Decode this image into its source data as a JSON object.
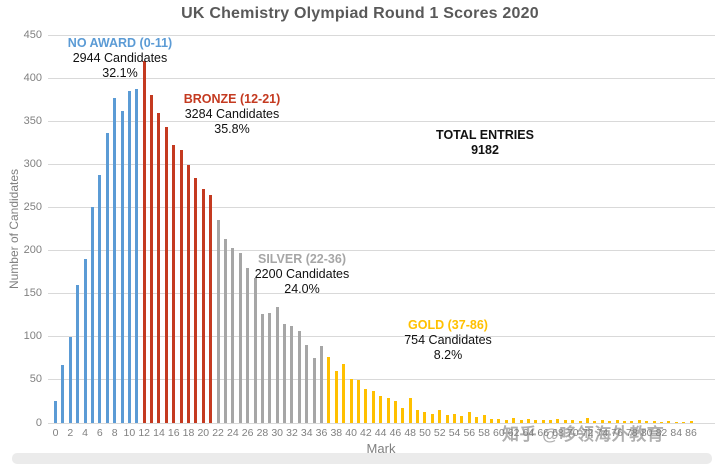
{
  "page": {
    "watermark": "知乎 @哆领海外教育"
  },
  "chart": {
    "title": "UK Chemistry Olympiad Round 1 Scores 2020",
    "x_axis": {
      "title": "Mark",
      "tick_start": 0,
      "tick_end": 86,
      "tick_step": 2
    },
    "y_axis": {
      "title": "Number of Candidates",
      "min": 0,
      "max": 450,
      "step": 50
    },
    "colors": {
      "title_text": "#595959",
      "axis_text": "#808080",
      "gridline": "#d9d9d9",
      "annotation_text": "#111111"
    }
  },
  "chart_data": {
    "type": "bar",
    "title": "UK Chemistry Olympiad Round 1 Scores 2020",
    "xlabel": "Mark",
    "ylabel": "Number of Candidates",
    "ylim": [
      0,
      450
    ],
    "xlim": [
      0,
      86
    ],
    "grid": true,
    "x_start": 0,
    "values": [
      25,
      67,
      100,
      160,
      190,
      250,
      288,
      336,
      377,
      362,
      385,
      387,
      420,
      380,
      359,
      343,
      323,
      317,
      299,
      284,
      271,
      265,
      235,
      214,
      203,
      197,
      180,
      168,
      126,
      128,
      135,
      115,
      112,
      107,
      91,
      75,
      89,
      76,
      60,
      68,
      51,
      50,
      39,
      37,
      31,
      29,
      26,
      17,
      29,
      15,
      13,
      11,
      15,
      9,
      11,
      8,
      13,
      7,
      9,
      5,
      5,
      4,
      6,
      4,
      5,
      3,
      4,
      3,
      5,
      3,
      4,
      2,
      6,
      2,
      4,
      2,
      3,
      2,
      2,
      3,
      2,
      2,
      1,
      2,
      1,
      1,
      2
    ],
    "regions": [
      {
        "name": "NO AWARD",
        "range": [
          0,
          11
        ],
        "color": "#5B9BD5",
        "label": "NO AWARD (0-11)",
        "candidates": "2944 Candidates",
        "percent": "32.1%"
      },
      {
        "name": "BRONZE",
        "range": [
          12,
          21
        ],
        "color": "#C43A20",
        "label": "BRONZE (12-21)",
        "candidates": "3284 Candidates",
        "percent": "35.8%"
      },
      {
        "name": "SILVER",
        "range": [
          22,
          36
        ],
        "color": "#A6A6A6",
        "label": "SILVER (22-36)",
        "candidates": "2200 Candidates",
        "percent": "24.0%"
      },
      {
        "name": "GOLD",
        "range": [
          37,
          86
        ],
        "color": "#FFC000",
        "label": "GOLD (37-86)",
        "candidates": "754 Candidates",
        "percent": "8.2%"
      }
    ],
    "total": {
      "label": "TOTAL ENTRIES",
      "value": "9182"
    }
  }
}
